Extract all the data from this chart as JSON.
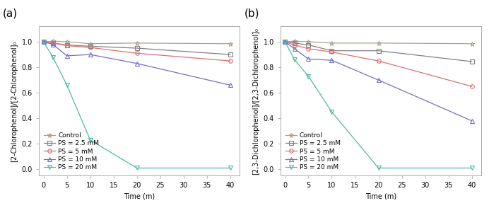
{
  "panel_a": {
    "label": "(a)",
    "ylabel": "[2-Chlorophenol]/[2-Chlorophenol]₀",
    "xlabel": "Time (m)",
    "series": [
      {
        "label": "Control",
        "color": "#b0a090",
        "marker": "*",
        "markersize": 5,
        "markerfacecolor": "none",
        "x": [
          0,
          2,
          5,
          10,
          20,
          40
        ],
        "y": [
          1.0,
          1.005,
          1.0,
          0.985,
          0.99,
          0.985
        ]
      },
      {
        "label": "PS = 2.5 mM",
        "color": "#808080",
        "marker": "s",
        "markersize": 4,
        "markerfacecolor": "none",
        "x": [
          0,
          2,
          5,
          10,
          20,
          40
        ],
        "y": [
          1.0,
          0.99,
          0.975,
          0.965,
          0.95,
          0.9
        ]
      },
      {
        "label": "PS = 5 mM",
        "color": "#d97070",
        "marker": "o",
        "markersize": 4,
        "markerfacecolor": "none",
        "x": [
          0,
          2,
          5,
          10,
          20,
          40
        ],
        "y": [
          1.0,
          0.99,
          0.97,
          0.955,
          0.91,
          0.85
        ]
      },
      {
        "label": "PS = 10 mM",
        "color": "#7070c8",
        "marker": "^",
        "markersize": 4,
        "markerfacecolor": "none",
        "x": [
          0,
          2,
          5,
          10,
          20,
          40
        ],
        "y": [
          1.0,
          0.98,
          0.89,
          0.9,
          0.83,
          0.66
        ]
      },
      {
        "label": "PS = 20 mM",
        "color": "#50b8a8",
        "marker": "v",
        "markersize": 4,
        "markerfacecolor": "none",
        "x": [
          0,
          2,
          5,
          10,
          20,
          40
        ],
        "y": [
          1.0,
          0.88,
          0.66,
          0.23,
          0.01,
          0.01
        ]
      }
    ],
    "xlim": [
      -1,
      42
    ],
    "ylim": [
      -0.05,
      1.12
    ],
    "xticks": [
      0,
      5,
      10,
      15,
      20,
      25,
      30,
      35,
      40
    ],
    "yticks": [
      0.0,
      0.2,
      0.4,
      0.6,
      0.8,
      1.0
    ]
  },
  "panel_b": {
    "label": "(b)",
    "ylabel": "[2,3-Dichlorophenol]/[2,3-Dichlorophenol]₀",
    "xlabel": "Time (m)",
    "series": [
      {
        "label": "Control",
        "color": "#b0a090",
        "marker": "*",
        "markersize": 5,
        "markerfacecolor": "none",
        "x": [
          0,
          2,
          5,
          10,
          20,
          40
        ],
        "y": [
          1.0,
          1.005,
          1.0,
          0.99,
          0.99,
          0.985
        ]
      },
      {
        "label": "PS = 2.5 mM",
        "color": "#808080",
        "marker": "s",
        "markersize": 4,
        "markerfacecolor": "none",
        "x": [
          0,
          2,
          5,
          10,
          20,
          40
        ],
        "y": [
          1.0,
          0.99,
          0.975,
          0.93,
          0.93,
          0.845
        ]
      },
      {
        "label": "PS = 5 mM",
        "color": "#d97070",
        "marker": "o",
        "markersize": 4,
        "markerfacecolor": "none",
        "x": [
          0,
          2,
          5,
          10,
          20,
          40
        ],
        "y": [
          1.0,
          0.975,
          0.945,
          0.92,
          0.85,
          0.65
        ]
      },
      {
        "label": "PS = 10 mM",
        "color": "#7070c8",
        "marker": "^",
        "markersize": 4,
        "markerfacecolor": "none",
        "x": [
          0,
          2,
          5,
          10,
          20,
          40
        ],
        "y": [
          1.0,
          0.945,
          0.865,
          0.855,
          0.7,
          0.38
        ]
      },
      {
        "label": "PS = 20 mM",
        "color": "#50b8a8",
        "marker": "v",
        "markersize": 4,
        "markerfacecolor": "none",
        "x": [
          0,
          2,
          5,
          10,
          20,
          40
        ],
        "y": [
          1.0,
          0.86,
          0.73,
          0.45,
          0.01,
          0.01
        ]
      }
    ],
    "xlim": [
      -1,
      42
    ],
    "ylim": [
      -0.05,
      1.12
    ],
    "xticks": [
      0,
      5,
      10,
      15,
      20,
      25,
      30,
      35,
      40
    ],
    "yticks": [
      0.0,
      0.2,
      0.4,
      0.6,
      0.8,
      1.0
    ]
  },
  "legend_fontsize": 6.5,
  "tick_fontsize": 7,
  "label_fontsize": 7,
  "panel_label_fontsize": 11
}
